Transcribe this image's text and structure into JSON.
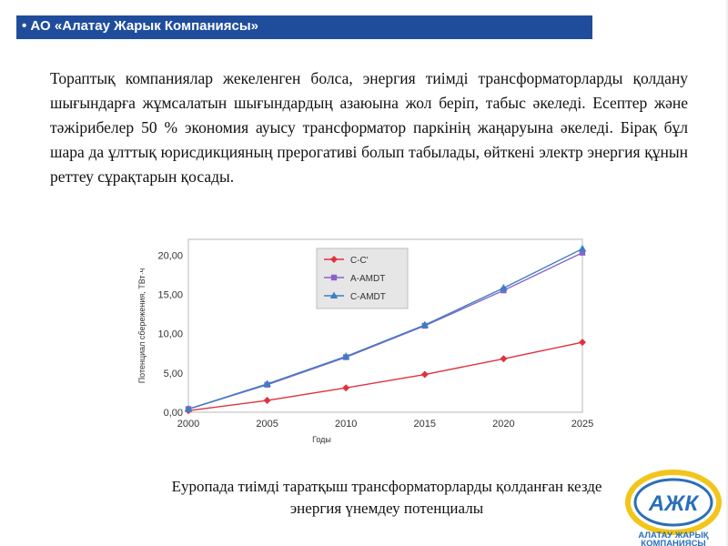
{
  "header": {
    "title": "• АО «Алатау Жарык Компаниясы»"
  },
  "paragraph": "Тораптық компаниялар жекеленген болса, энергия тиімді трансформаторларды қолдану шығындарға жұмсалатын шығындардың азаюына жол беріп, табыс әкеледі. Есептер және тәжірибелер 50 % экономия ауысу трансформатор паркінің жаңаруына әкеледі.  Бірақ бұл шара да ұлттық юрисдикцияның прерогативі болып табылады, өйткені электр энергия құнын реттеу сұрақтарын қосады.",
  "caption": {
    "line1": "Еуропада тиімді таратқыш трансформаторларды қолданған кезде",
    "line2": "энергия үнемдеу потенциалы"
  },
  "logo": {
    "letters": "АЖК",
    "line1": "АЛАТАУ ЖАРЫҚ",
    "line2": "КОМПАНИЯСЫ"
  },
  "colors": {
    "header_bg": "#1f4d9c",
    "series_cc": "#e0323c",
    "series_aamdt": "#8a63c9",
    "series_camdt": "#3a7fc4",
    "logo_yellow": "#f2c51b",
    "logo_blue": "#2a6fb8"
  },
  "chart_data": {
    "type": "line",
    "xlabel": "Годы",
    "ylabel": "Потенциал сбережения, ТВт·ч",
    "x": [
      2000,
      2005,
      2010,
      2015,
      2020,
      2025
    ],
    "xticks": [
      "2000",
      "2005",
      "2010",
      "2015",
      "2020",
      "2025"
    ],
    "yticks": [
      "0,00",
      "5,00",
      "10,00",
      "15,00",
      "20,00"
    ],
    "ylim": [
      0,
      22
    ],
    "xlim": [
      2000,
      2025
    ],
    "grid": true,
    "legend_position": "top-center",
    "series": [
      {
        "name": "C-C'",
        "marker": "diamond",
        "values": [
          0.2,
          1.5,
          3.1,
          4.8,
          6.8,
          8.9
        ]
      },
      {
        "name": "A-AMDT",
        "marker": "square",
        "values": [
          0.4,
          3.5,
          7.0,
          11.0,
          15.5,
          20.3
        ]
      },
      {
        "name": "C-AMDT",
        "marker": "triangle",
        "values": [
          0.4,
          3.6,
          7.1,
          11.1,
          15.8,
          20.8
        ]
      }
    ]
  }
}
